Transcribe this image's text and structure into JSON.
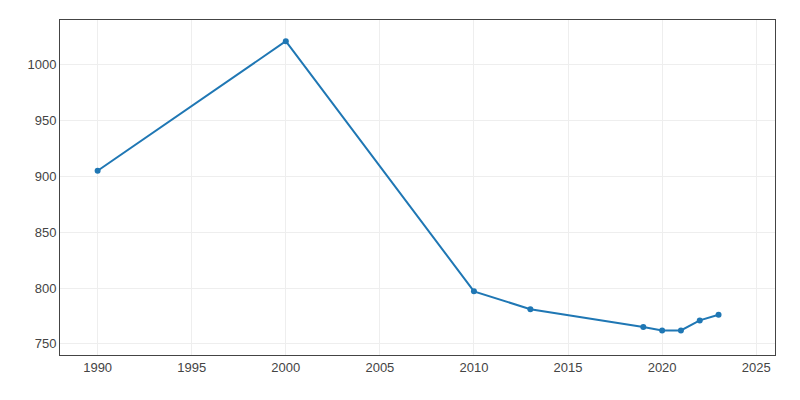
{
  "chart_data": {
    "type": "line",
    "x": [
      1990,
      2000,
      2010,
      2013,
      2019,
      2020,
      2021,
      2022,
      2023
    ],
    "values": [
      905,
      1021,
      797,
      781,
      765,
      762,
      762,
      771,
      776
    ],
    "marker": "circle",
    "xlim": [
      1988,
      2026
    ],
    "xticks": [
      1990,
      1995,
      2000,
      2005,
      2010,
      2015,
      2020,
      2025
    ],
    "ylim": [
      740,
      1040
    ],
    "yticks": [
      750,
      800,
      850,
      900,
      950,
      1000
    ],
    "grid": true
  }
}
